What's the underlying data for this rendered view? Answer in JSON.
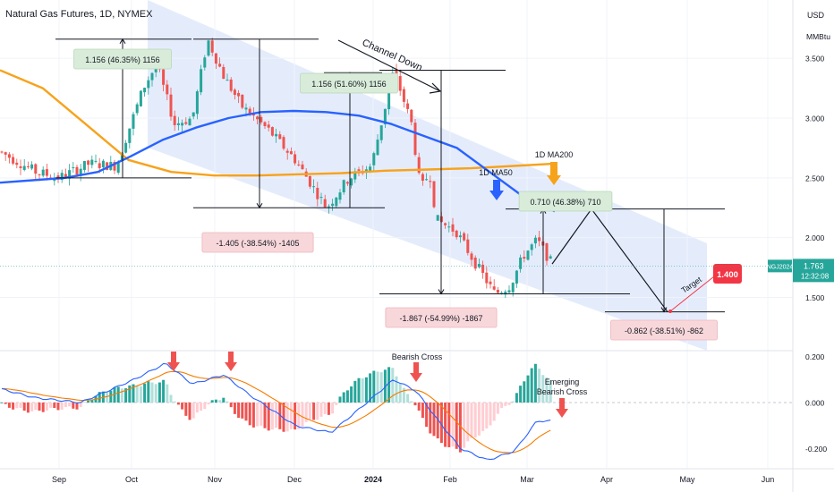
{
  "header": {
    "symbol_title": "Natural Gas Futures, 1D, NYMEX",
    "currency": "USD",
    "unit": "MMBtu"
  },
  "colors": {
    "up": "#26a69a",
    "down": "#ef5350",
    "ma50": "#2962ff",
    "ma200": "#f7a21b",
    "channel": "#dbe6fb",
    "macd_line": "#2962ff",
    "signal_line": "#f57c00",
    "price_badge": "#26a69a",
    "target_badge": "#f23645"
  },
  "chart_data": [
    {
      "type": "candlestick",
      "title": "Natural Gas Futures, 1D, NYMEX",
      "y_ticks": [
        "3.500",
        "3.000",
        "2.500",
        "2.000",
        "1.500"
      ],
      "x_ticks": [
        "Sep",
        "Oct",
        "Nov",
        "Dec",
        "2024",
        "Feb",
        "Mar",
        "Apr",
        "May",
        "Jun"
      ],
      "ylim": [
        1.1,
        3.95
      ],
      "last_price": {
        "symbol": "NGJ2024",
        "price": "1.763",
        "countdown": "12:32:08",
        "value": 1.763
      },
      "target": {
        "label": "1.400",
        "value": 1.4
      },
      "annotations": {
        "channel": "Channel Down",
        "ma200": "1D MA200",
        "ma50": "1D MA50",
        "target": "Target"
      },
      "measurements": [
        {
          "text": "1.156 (46.35%) 1156",
          "kind": "up"
        },
        {
          "text": "1.156 (51.60%) 1156",
          "kind": "up"
        },
        {
          "text": "0.710 (46.38%) 710",
          "kind": "up"
        },
        {
          "text": "-1.405 (-38.54%) -1405",
          "kind": "down"
        },
        {
          "text": "-1.867 (-54.99%) -1867",
          "kind": "down"
        },
        {
          "text": "-0.862 (-38.51%) -862",
          "kind": "down"
        }
      ],
      "key_levels": [
        {
          "point": "early-Aug low",
          "value": 2.5
        },
        {
          "point": "Oct high",
          "value": 3.66
        },
        {
          "point": "Oct high (repeat)",
          "value": 3.66
        },
        {
          "point": "Dec low",
          "value": 2.25
        },
        {
          "point": "Jan high",
          "value": 3.4
        },
        {
          "point": "Feb low",
          "value": 1.53
        },
        {
          "point": "Mar pivot",
          "value": 1.53
        },
        {
          "point": "projected high",
          "value": 2.24
        },
        {
          "point": "projected target low",
          "value": 1.38
        }
      ],
      "ma50_points": [
        2.46,
        2.48,
        2.5,
        2.55,
        2.68,
        2.82,
        2.92,
        3.0,
        3.05,
        3.06,
        3.05,
        3.02,
        2.95,
        2.85,
        2.75,
        2.55,
        2.35,
        2.22
      ],
      "ma200_points": [
        3.4,
        3.25,
        2.95,
        2.65,
        2.55,
        2.52,
        2.52,
        2.53,
        2.54,
        2.56,
        2.57,
        2.58,
        2.6,
        2.62
      ]
    },
    {
      "type": "macd",
      "y_ticks": [
        "0.200",
        "0.000",
        "-0.200"
      ],
      "ylim": [
        -0.27,
        0.23
      ],
      "annotations": {
        "bearish_cross": "Bearish Cross",
        "emerging": "Emerging\nBearish Cross"
      }
    }
  ]
}
